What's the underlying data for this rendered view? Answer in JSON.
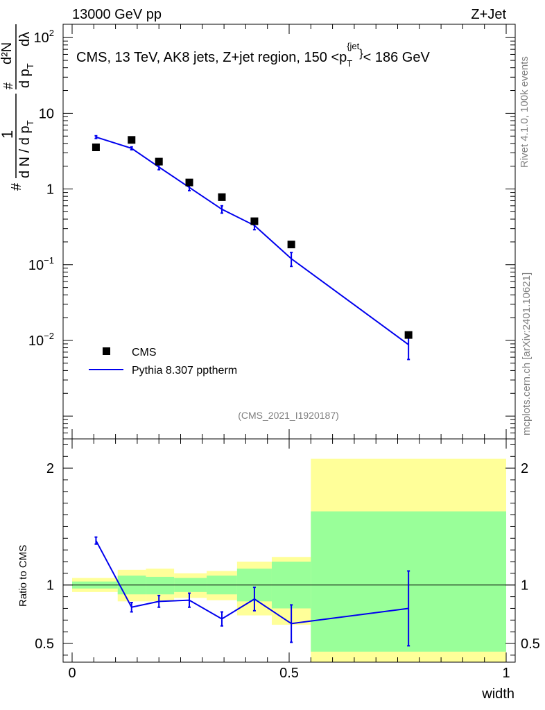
{
  "header": {
    "left_label": "13000 GeV pp",
    "right_label": "Z+Jet"
  },
  "side_labels": {
    "rivet": "Rivet 4.1.0,  100k events",
    "mcplots": "mcplots.cern.ch [arXiv:2401.10621]"
  },
  "colors": {
    "cms": "#000000",
    "pythia": "#0000ee",
    "band_outer": "#ffff99",
    "band_inner": "#99ff99"
  },
  "chart_data": [
    {
      "type": "scatter",
      "title_parts": {
        "prefix": "CMS, 13 TeV, AK8 jets, Z+jet region, 150 <p",
        "sub": "T",
        "sup": "{jet",
        "close": "}",
        "suffix": "< 186 GeV"
      },
      "ylabel": {
        "part1": "1",
        "part2": "d N / d p",
        "part3": "d²N",
        "part4": "d p",
        "part5": "dλ",
        "sub": "T",
        "hash": "#"
      },
      "ylim": [
        0.0005,
        150
      ],
      "yscale": "log",
      "xlim": [
        0,
        1
      ],
      "y_ticks": [
        {
          "value": 100,
          "label": "10",
          "exp": "2"
        },
        {
          "value": 10,
          "label": "10",
          "exp": ""
        },
        {
          "value": 1,
          "label": "1",
          "exp": ""
        },
        {
          "value": 0.1,
          "label": "10",
          "exp": "−1"
        },
        {
          "value": 0.01,
          "label": "10",
          "exp": "−2"
        }
      ],
      "legend": [
        {
          "name": "CMS"
        },
        {
          "name": "Pythia 8.307 pptherm"
        }
      ],
      "analysis_label": "(CMS_2021_I1920187)",
      "series": [
        {
          "name": "CMS",
          "x": [
            0.055,
            0.137,
            0.2,
            0.27,
            0.345,
            0.42,
            0.505,
            0.775
          ],
          "y": [
            3.55,
            4.45,
            2.3,
            1.22,
            0.78,
            0.375,
            0.185,
            0.0118
          ]
        },
        {
          "name": "Pythia 8.307 pptherm",
          "x": [
            0.055,
            0.137,
            0.2,
            0.27,
            0.345,
            0.42,
            0.505,
            0.775
          ],
          "y": [
            4.85,
            3.45,
            1.95,
            1.05,
            0.54,
            0.33,
            0.12,
            0.0088
          ],
          "yerr": [
            0.2,
            0.15,
            0.15,
            0.1,
            0.06,
            0.04,
            0.025,
            0.0032
          ]
        }
      ]
    },
    {
      "type": "line",
      "ylabel": "Ratio to CMS",
      "xlabel": "width",
      "xlim": [
        0,
        1
      ],
      "ylim": [
        0.34,
        2.25
      ],
      "x_ticks": [
        {
          "value": 0,
          "label": "0"
        },
        {
          "value": 0.5,
          "label": "0.5"
        },
        {
          "value": 1,
          "label": "1"
        }
      ],
      "y_ticks": [
        {
          "value": 0.5,
          "label": "0.5"
        },
        {
          "value": 1,
          "label": "1"
        },
        {
          "value": 2,
          "label": "2"
        }
      ],
      "bands": [
        {
          "x0": 0.0,
          "x1": 0.105,
          "in_lo": 0.97,
          "in_hi": 1.03,
          "out_lo": 0.94,
          "out_hi": 1.06
        },
        {
          "x0": 0.105,
          "x1": 0.17,
          "in_lo": 0.92,
          "in_hi": 1.08,
          "out_lo": 0.86,
          "out_hi": 1.13
        },
        {
          "x0": 0.17,
          "x1": 0.235,
          "in_lo": 0.92,
          "in_hi": 1.07,
          "out_lo": 0.86,
          "out_hi": 1.14
        },
        {
          "x0": 0.235,
          "x1": 0.31,
          "in_lo": 0.94,
          "in_hi": 1.06,
          "out_lo": 0.89,
          "out_hi": 1.1
        },
        {
          "x0": 0.31,
          "x1": 0.38,
          "in_lo": 0.92,
          "in_hi": 1.08,
          "out_lo": 0.87,
          "out_hi": 1.12
        },
        {
          "x0": 0.38,
          "x1": 0.46,
          "in_lo": 0.86,
          "in_hi": 1.14,
          "out_lo": 0.74,
          "out_hi": 1.2
        },
        {
          "x0": 0.46,
          "x1": 0.55,
          "in_lo": 0.8,
          "in_hi": 1.2,
          "out_lo": 0.66,
          "out_hi": 1.24
        },
        {
          "x0": 0.55,
          "x1": 1.0,
          "in_lo": 0.43,
          "in_hi": 1.63,
          "out_lo": 0.34,
          "out_hi": 2.08
        }
      ],
      "series": [
        {
          "name": "Pythia 8.307 pptherm",
          "x": [
            0.055,
            0.137,
            0.2,
            0.27,
            0.345,
            0.42,
            0.505,
            0.775
          ],
          "y": [
            1.38,
            0.81,
            0.86,
            0.87,
            0.71,
            0.88,
            0.67,
            0.8
          ],
          "yerr": [
            0.03,
            0.04,
            0.05,
            0.06,
            0.06,
            0.1,
            0.16,
            0.32
          ]
        }
      ]
    }
  ]
}
